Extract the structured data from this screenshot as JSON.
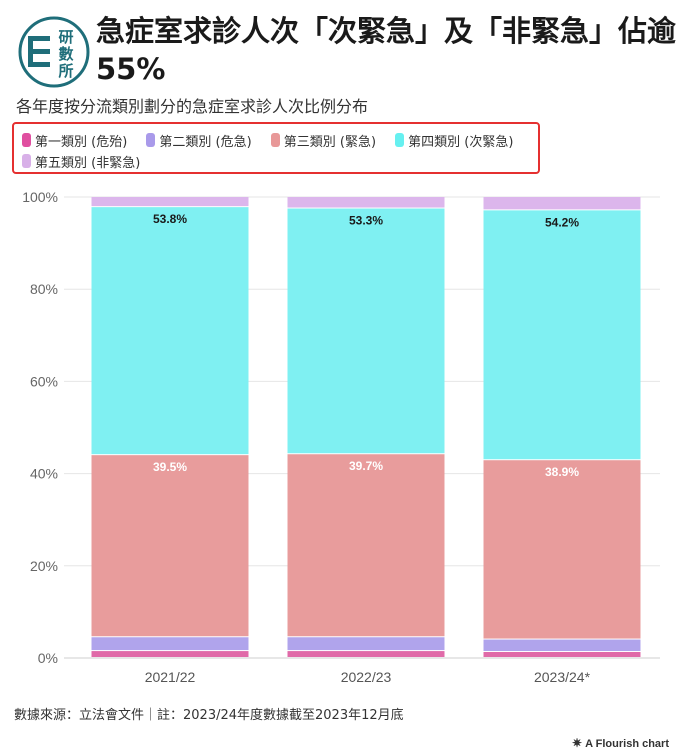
{
  "header": {
    "logo_text": [
      "研",
      "數",
      "所"
    ],
    "title": "急症室求診人次「次緊急」及「非緊急」佔逾55%",
    "subtitle": "各年度按分流類別劃分的急症室求診人次比例分布"
  },
  "legend": [
    {
      "label": "第一類別 (危殆)",
      "color": "#e04fa0"
    },
    {
      "label": "第二類別 (危急)",
      "color": "#a99aea"
    },
    {
      "label": "第三類別 (緊急)",
      "color": "#e89898"
    },
    {
      "label": "第四類別 (次緊急)",
      "color": "#66f0f0"
    },
    {
      "label": "第五類別 (非緊急)",
      "color": "#d8b0e8"
    }
  ],
  "chart_data": {
    "type": "bar",
    "stacked": true,
    "categories": [
      "2021/22",
      "2022/23",
      "2023/24*"
    ],
    "series": [
      {
        "name": "第一類別 (危殆)",
        "color": "#e06aa8",
        "values": [
          1.5,
          1.5,
          1.3
        ]
      },
      {
        "name": "第二類別 (危急)",
        "color": "#b0a4ec",
        "values": [
          3.0,
          3.0,
          2.7
        ]
      },
      {
        "name": "第三類別 (緊急)",
        "color": "#e89c9c",
        "values": [
          39.5,
          39.7,
          38.9
        ]
      },
      {
        "name": "第四類別 (次緊急)",
        "color": "#7ff0f2",
        "values": [
          53.8,
          53.3,
          54.2
        ]
      },
      {
        "name": "第五類別 (非緊急)",
        "color": "#dcb6ec",
        "values": [
          2.2,
          2.5,
          2.9
        ]
      }
    ],
    "data_labels": [
      {
        "series": 2,
        "labels": [
          "39.5%",
          "39.7%",
          "38.9%"
        ]
      },
      {
        "series": 3,
        "labels": [
          "53.8%",
          "53.3%",
          "54.2%"
        ]
      }
    ],
    "y_ticks": [
      "0%",
      "20%",
      "40%",
      "60%",
      "80%",
      "100%"
    ],
    "ylim": [
      0,
      100
    ],
    "grid": true,
    "legend_position": "top"
  },
  "footer": {
    "source": "數據來源：立法會文件｜註：2023/24年度數據截至2023年12月底",
    "credit": "A Flourish chart"
  }
}
